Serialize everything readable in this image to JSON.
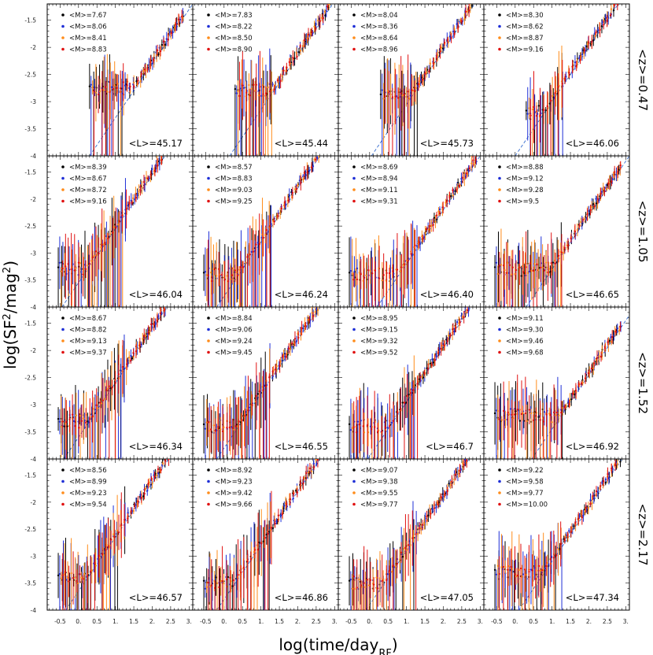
{
  "chart_data": {
    "type": "scatter",
    "title": "",
    "xlabel": "log(time/day_RF)",
    "ylabel": "log(SF^2/mag^2)",
    "xlim": [
      -0.85,
      3.1
    ],
    "ylim": [
      -4,
      -1.2
    ],
    "xticks": [
      "-0.5",
      "0.",
      "0.5",
      "1.",
      "1.5",
      "2.",
      "2.5",
      "3."
    ],
    "xtick_values": [
      -0.5,
      0,
      0.5,
      1,
      1.5,
      2,
      2.5,
      3
    ],
    "yticks": [
      "-1.5",
      "-2",
      "-2.5",
      "-3",
      "-3.5",
      "-4"
    ],
    "ytick_values": [
      -1.5,
      -2,
      -2.5,
      -3,
      -3.5,
      -4
    ],
    "series_colors": [
      "#000000",
      "#1f2fd6",
      "#ff8c1a",
      "#e01010"
    ],
    "reference_line": {
      "style": "dashed",
      "color": "#3a6fd0",
      "x": [
        -0.7,
        3.0
      ],
      "slope": 1.0
    },
    "rows": [
      {
        "z_label": "<z>=0.47",
        "panels": [
          {
            "L_label": "<L>=45.17",
            "M_labels": [
              "<M>=7.67",
              "<M>=8.06",
              "<M>=8.41",
              "<M>=8.83"
            ],
            "line_x0": 0.3,
            "floor": -2.75
          },
          {
            "L_label": "<L>=45.44",
            "M_labels": [
              "<M>=7.83",
              "<M>=8.22",
              "<M>=8.50",
              "<M>=8.90"
            ],
            "line_x0": 0.15,
            "floor": -2.8
          },
          {
            "L_label": "<L>=45.73",
            "M_labels": [
              "<M>=8.04",
              "<M>=8.36",
              "<M>=8.64",
              "<M>=8.96"
            ],
            "line_x0": 0.05,
            "floor": -2.9
          },
          {
            "L_label": "<L>=46.06",
            "M_labels": [
              "<M>=8.30",
              "<M>=8.62",
              "<M>=8.87",
              "<M>=9.16"
            ],
            "line_x0": 0.0,
            "floor": -3.2
          }
        ]
      },
      {
        "z_label": "<z>=1.05",
        "panels": [
          {
            "L_label": "<L>=46.04",
            "M_labels": [
              "<M>=8.39",
              "<M>=8.67",
              "<M>=8.72",
              "<M>=9.16"
            ],
            "line_x0": -0.45,
            "floor": -3.3
          },
          {
            "L_label": "<L>=46.24",
            "M_labels": [
              "<M>=8.57",
              "<M>=8.83",
              "<M>=9.03",
              "<M>=9.25"
            ],
            "line_x0": -0.2,
            "floor": -3.4
          },
          {
            "L_label": "<L>=46.40",
            "M_labels": [
              "<M>=8.69",
              "<M>=8.94",
              "<M>=9.11",
              "<M>=9.31"
            ],
            "line_x0": 0.2,
            "floor": -3.4
          },
          {
            "L_label": "<L>=46.65",
            "M_labels": [
              "<M>=8.88",
              "<M>=9.12",
              "<M>=9.28",
              "<M>=9.5"
            ],
            "line_x0": 0.3,
            "floor": -3.3
          }
        ]
      },
      {
        "z_label": "<z>=1.52",
        "panels": [
          {
            "L_label": "<L>=46.34",
            "M_labels": [
              "<M>=8.67",
              "<M>=8.82",
              "<M>=9.13",
              "<M>=9.37"
            ],
            "line_x0": -0.4,
            "floor": -3.3
          },
          {
            "L_label": "<L>=46.55",
            "M_labels": [
              "<M>=8.84",
              "<M>=9.06",
              "<M>=9.24",
              "<M>=9.45"
            ],
            "line_x0": -0.2,
            "floor": -3.4
          },
          {
            "L_label": "<L>=46.7",
            "M_labels": [
              "<M>=8.95",
              "<M>=9.15",
              "<M>=9.32",
              "<M>=9.52"
            ],
            "line_x0": -0.05,
            "floor": -3.4
          },
          {
            "L_label": "<L>=46.92",
            "M_labels": [
              "<M>=9.11",
              "<M>=9.30",
              "<M>=9.46",
              "<M>=9.68"
            ],
            "line_x0": 0.45,
            "floor": -3.2
          }
        ]
      },
      {
        "z_label": "<z>=2.17",
        "panels": [
          {
            "L_label": "<L>=46.57",
            "M_labels": [
              "<M>=8.56",
              "<M>=8.99",
              "<M>=9.23",
              "<M>=9.54"
            ],
            "line_x0": -0.35,
            "floor": -3.4
          },
          {
            "L_label": "<L>=46.86",
            "M_labels": [
              "<M>=8.92",
              "<M>=9.23",
              "<M>=9.42",
              "<M>=9.66"
            ],
            "line_x0": -0.2,
            "floor": -3.5
          },
          {
            "L_label": "<L>=47.05",
            "M_labels": [
              "<M>=9.07",
              "<M>=9.38",
              "<M>=9.55",
              "<M>=9.77"
            ],
            "line_x0": -0.1,
            "floor": -3.5
          },
          {
            "L_label": "<L>=47.34",
            "M_labels": [
              "<M>=9.22",
              "<M>=9.58",
              "<M>=9.77",
              "<M>=10.00"
            ],
            "line_x0": 0.1,
            "floor": -3.3
          }
        ]
      }
    ]
  }
}
